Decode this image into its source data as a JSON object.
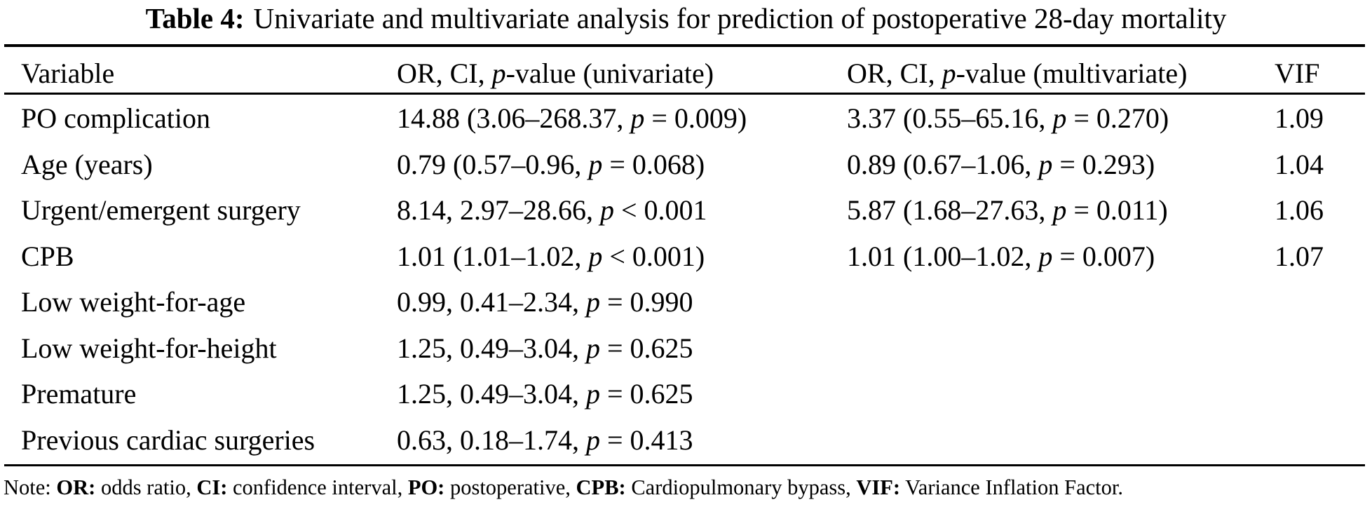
{
  "colors": {
    "text": "#000000",
    "background": "#ffffff"
  },
  "title": {
    "label": "Table 4:",
    "text": "Univariate and multivariate analysis for prediction of postoperative 28-day mortality"
  },
  "table": {
    "columns": [
      "Variable",
      "OR, CI, p-value (univariate)",
      "OR, CI, p-value (multivariate)",
      "VIF"
    ],
    "rows": [
      {
        "variable": "PO complication",
        "univariate": "14.88 (3.06–268.37, p = 0.009)",
        "multivariate": "3.37 (0.55–65.16, p = 0.270)",
        "vif": "1.09"
      },
      {
        "variable": "Age (years)",
        "univariate": "0.79 (0.57–0.96, p = 0.068)",
        "multivariate": "0.89 (0.67–1.06, p = 0.293)",
        "vif": "1.04"
      },
      {
        "variable": "Urgent/emergent surgery",
        "univariate": "8.14, 2.97–28.66, p < 0.001",
        "multivariate": "5.87 (1.68–27.63, p = 0.011)",
        "vif": "1.06"
      },
      {
        "variable": "CPB",
        "univariate": "1.01 (1.01–1.02, p < 0.001)",
        "multivariate": "1.01 (1.00–1.02, p = 0.007)",
        "vif": "1.07"
      },
      {
        "variable": "Low weight-for-age",
        "univariate": "0.99, 0.41–2.34, p = 0.990",
        "multivariate": "",
        "vif": ""
      },
      {
        "variable": "Low weight-for-height",
        "univariate": "1.25, 0.49–3.04, p = 0.625",
        "multivariate": "",
        "vif": ""
      },
      {
        "variable": "Premature",
        "univariate": "1.25, 0.49–3.04, p = 0.625",
        "multivariate": "",
        "vif": ""
      },
      {
        "variable": "Previous cardiac surgeries",
        "univariate": "0.63, 0.18–1.74, p = 0.413",
        "multivariate": "",
        "vif": ""
      }
    ]
  },
  "note": {
    "segments": [
      {
        "text": "Note: ",
        "bold": false
      },
      {
        "text": "OR:",
        "bold": true
      },
      {
        "text": " odds ratio, ",
        "bold": false
      },
      {
        "text": "CI:",
        "bold": true
      },
      {
        "text": " confidence interval, ",
        "bold": false
      },
      {
        "text": "PO:",
        "bold": true
      },
      {
        "text": " postoperative, ",
        "bold": false
      },
      {
        "text": "CPB:",
        "bold": true
      },
      {
        "text": " Cardiopulmonary bypass, ",
        "bold": false
      },
      {
        "text": "VIF:",
        "bold": true
      },
      {
        "text": " Variance Inflation Factor.",
        "bold": false
      }
    ]
  }
}
